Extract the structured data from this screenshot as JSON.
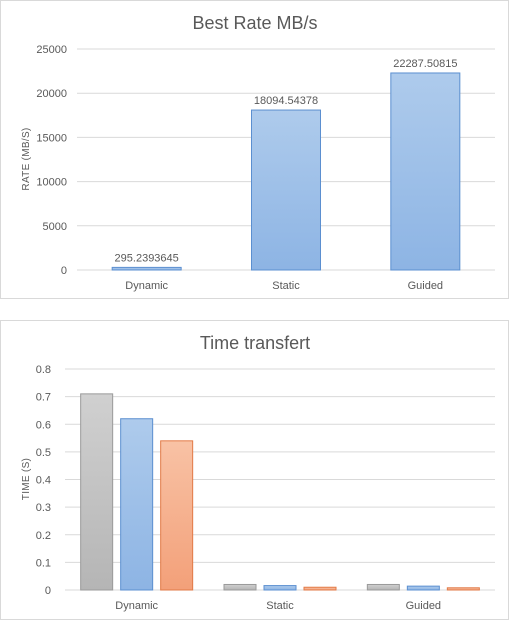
{
  "chart_data": [
    {
      "type": "bar",
      "title": "Best Rate MB/s",
      "xlabel": "",
      "ylabel": "RATE (MB/S)",
      "categories": [
        "Dynamic",
        "Static",
        "Guided"
      ],
      "values": [
        295.2393645,
        18094.54378,
        22287.50815
      ],
      "data_labels": [
        "295.2393645",
        "18094.54378",
        "22287.50815"
      ],
      "ylim": [
        0,
        25000
      ],
      "yticks": [
        "0",
        "5000",
        "10000",
        "15000",
        "20000",
        "25000"
      ],
      "grid": true,
      "colors": {
        "bar_top": "#aecbec",
        "bar_bottom": "#8db4e4",
        "bar_edge": "#5b8fd0"
      }
    },
    {
      "type": "bar",
      "title": "Time transfert",
      "xlabel": "",
      "ylabel": "TIME (S)",
      "categories": [
        "Dynamic",
        "Static",
        "Guided"
      ],
      "series": [
        {
          "values": [
            0.71,
            0.02,
            0.02
          ],
          "color_top": "#d0d0d0",
          "color_bottom": "#b5b5b5",
          "edge": "#9a9a9a"
        },
        {
          "values": [
            0.62,
            0.016,
            0.014
          ],
          "color_top": "#aecbec",
          "color_bottom": "#8db4e4",
          "edge": "#5b8fd0"
        },
        {
          "values": [
            0.54,
            0.01,
            0.008
          ],
          "color_top": "#f8c2a5",
          "color_bottom": "#f3a079",
          "edge": "#e27a47"
        }
      ],
      "ylim": [
        0,
        0.8
      ],
      "yticks": [
        "0",
        "0.1",
        "0.2",
        "0.3",
        "0.4",
        "0.5",
        "0.6",
        "0.7",
        "0.8"
      ],
      "grid": true
    }
  ]
}
